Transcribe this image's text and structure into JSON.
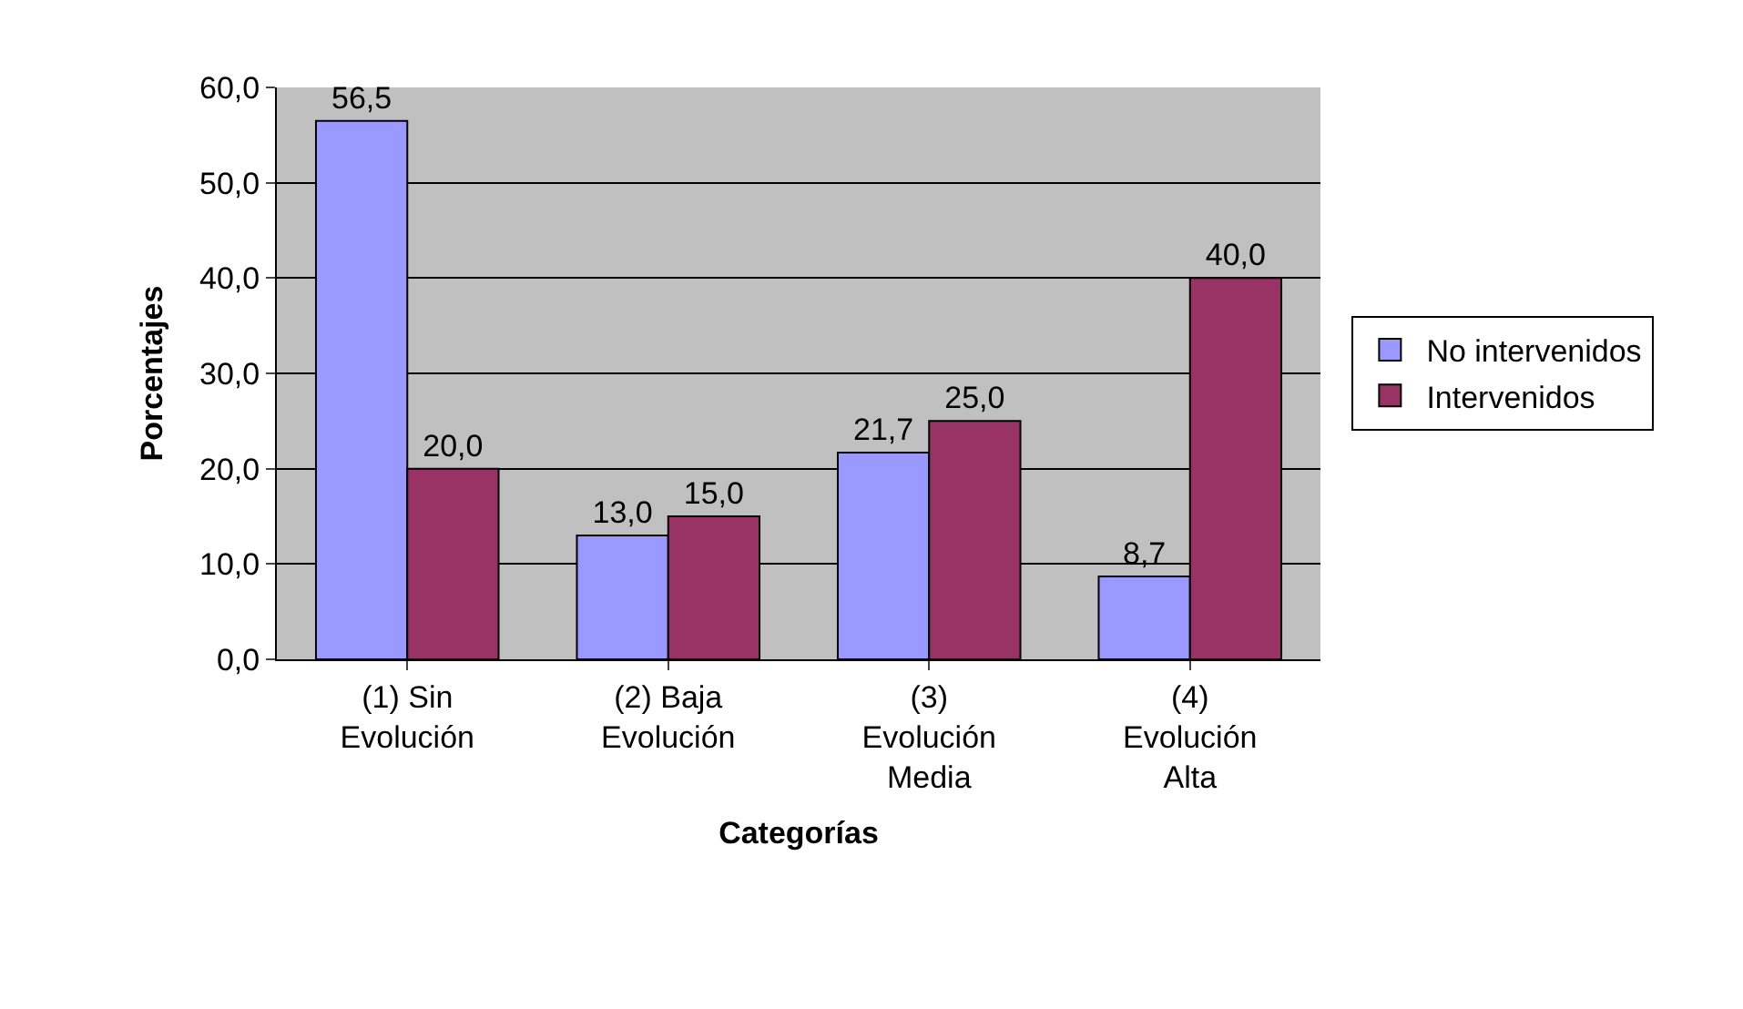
{
  "chart_data": {
    "type": "bar",
    "xlabel": "Categorías",
    "ylabel": "Porcentajes",
    "categories": [
      "(1) Sin\nEvolución",
      "(2) Baja\nEvolución",
      "(3)\nEvolución\nMedia",
      "(4)\nEvolución\nAlta"
    ],
    "series": [
      {
        "name": "No intervenidos",
        "color": "#9999ff",
        "values": [
          56.5,
          13.0,
          21.7,
          8.7
        ],
        "value_labels": [
          "56,5",
          "13,0",
          "21,7",
          "8,7"
        ]
      },
      {
        "name": "Intervenidos",
        "color": "#993366",
        "values": [
          20.0,
          15.0,
          25.0,
          40.0
        ],
        "value_labels": [
          "20,0",
          "15,0",
          "25,0",
          "40,0"
        ]
      }
    ],
    "ylim": [
      0,
      60
    ],
    "yticks": [
      {
        "value": 0,
        "label": "0,0"
      },
      {
        "value": 10,
        "label": "10,0"
      },
      {
        "value": 20,
        "label": "20,0"
      },
      {
        "value": 30,
        "label": "30,0"
      },
      {
        "value": 40,
        "label": "40,0"
      },
      {
        "value": 50,
        "label": "50,0"
      },
      {
        "value": 60,
        "label": "60,0"
      }
    ],
    "grid": "y",
    "legend": "right"
  }
}
